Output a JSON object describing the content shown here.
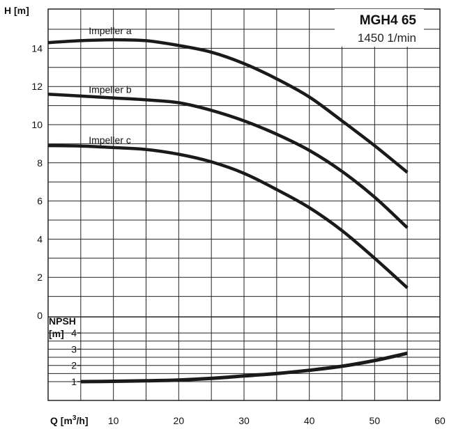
{
  "chart_data": {
    "type": "line",
    "title": "MGH4 65",
    "subtitle": "1450 1/min",
    "xlabel": "Q [m³/h]",
    "xlabel_parts": {
      "main": "Q [m",
      "sup": "3",
      "tail": "/h]"
    },
    "ylabel": "H [m]",
    "npsh_label_line1": "NPSH",
    "npsh_label_line2": "[m]",
    "xlim": [
      0,
      60
    ],
    "x_ticks": [
      "10",
      "20",
      "30",
      "40",
      "50",
      "60"
    ],
    "x_tick_values": [
      10,
      20,
      30,
      40,
      50,
      60
    ],
    "head_ylim": [
      0,
      15
    ],
    "head_y_ticks": [
      "0",
      "2",
      "4",
      "6",
      "8",
      "10",
      "12",
      "14"
    ],
    "head_y_tick_values": [
      0,
      2,
      4,
      6,
      8,
      10,
      12,
      14
    ],
    "npsh_ylim": [
      0,
      5
    ],
    "npsh_y_ticks": [
      "1",
      "2",
      "3",
      "4"
    ],
    "npsh_y_tick_values": [
      1,
      2,
      3,
      4
    ],
    "grid": true,
    "series": [
      {
        "name": "Impeller a",
        "panel": "head",
        "x": [
          0,
          5,
          10,
          15,
          20,
          25,
          30,
          35,
          40,
          45,
          50,
          55
        ],
        "y": [
          14.3,
          14.4,
          14.45,
          14.4,
          14.15,
          13.8,
          13.2,
          12.4,
          11.45,
          10.2,
          8.9,
          7.5
        ]
      },
      {
        "name": "Impeller b",
        "panel": "head",
        "x": [
          0,
          5,
          10,
          15,
          20,
          25,
          30,
          35,
          40,
          45,
          50,
          55
        ],
        "y": [
          11.6,
          11.5,
          11.4,
          11.3,
          11.15,
          10.75,
          10.2,
          9.5,
          8.65,
          7.55,
          6.2,
          4.6
        ]
      },
      {
        "name": "Impeller c",
        "panel": "head",
        "x": [
          0,
          5,
          10,
          15,
          20,
          25,
          30,
          35,
          40,
          45,
          50,
          55
        ],
        "y": [
          8.9,
          8.88,
          8.8,
          8.7,
          8.45,
          8.05,
          7.45,
          6.6,
          5.65,
          4.45,
          3.0,
          1.45
        ]
      },
      {
        "name": "NPSH",
        "panel": "npsh",
        "x": [
          5,
          10,
          15,
          20,
          25,
          30,
          35,
          40,
          45,
          50,
          55
        ],
        "y": [
          1.0,
          1.02,
          1.05,
          1.1,
          1.2,
          1.35,
          1.5,
          1.7,
          1.95,
          2.3,
          2.75
        ]
      }
    ]
  },
  "colors": {
    "curve": "#1a1a1a",
    "grid": "#222222",
    "background": "#ffffff"
  }
}
